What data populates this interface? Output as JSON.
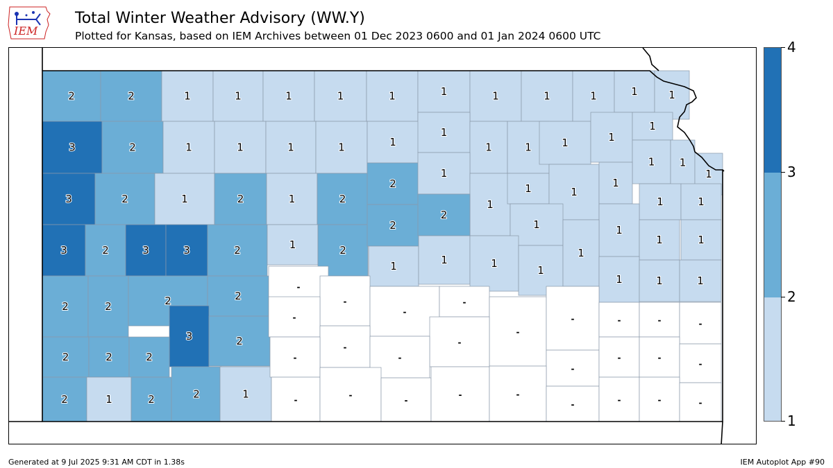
{
  "header": {
    "title": "Total Winter Weather Advisory (WW.Y)",
    "subtitle": "Plotted for Kansas, based on IEM Archives  between 01 Dec 2023 0600 and 01 Jan 2024 0600 UTC",
    "logo_text": "IEM"
  },
  "footer": {
    "generated": "Generated at 9 Jul 2025 9:31 AM CDT in 1.38s",
    "app": "IEM Autoplot App #90"
  },
  "colors": {
    "level1": "#c6dbef",
    "level2": "#6baed6",
    "level3": "#2171b5",
    "none": "#ffffff",
    "county_border": "#8a99aa",
    "logo": "#1a33b3",
    "logo_text": "#cc2222"
  },
  "colorbar": {
    "labels": [
      "4",
      "3",
      "2",
      "1"
    ]
  },
  "map": {
    "none_label": "-",
    "counties": [
      {
        "v": 2,
        "c": [
          60,
          101,
          84,
          73
        ]
      },
      {
        "v": 2,
        "c": [
          144,
          101,
          88,
          73
        ]
      },
      {
        "v": 1,
        "c": [
          232,
          101,
          74,
          73
        ]
      },
      {
        "v": 1,
        "c": [
          306,
          101,
          72,
          73
        ]
      },
      {
        "v": 1,
        "c": [
          378,
          101,
          74,
          73
        ]
      },
      {
        "v": 1,
        "c": [
          452,
          101,
          75,
          73
        ]
      },
      {
        "v": 1,
        "c": [
          527,
          101,
          74,
          73
        ]
      },
      {
        "v": 1,
        "c": [
          601,
          101,
          75,
          60
        ]
      },
      {
        "v": 1,
        "c": [
          676,
          101,
          74,
          73
        ]
      },
      {
        "v": 1,
        "c": [
          750,
          101,
          74,
          73
        ]
      },
      {
        "v": 1,
        "c": [
          824,
          101,
          60,
          73
        ]
      },
      {
        "v": 1,
        "c": [
          884,
          101,
          58,
          60
        ]
      },
      {
        "v": 1,
        "c": [
          942,
          101,
          50,
          70
        ]
      },
      {
        "v": 3,
        "c": [
          60,
          174,
          86,
          75
        ]
      },
      {
        "v": 2,
        "c": [
          146,
          174,
          88,
          75
        ]
      },
      {
        "v": 1,
        "c": [
          234,
          174,
          74,
          75
        ]
      },
      {
        "v": 1,
        "c": [
          308,
          174,
          74,
          75
        ]
      },
      {
        "v": 1,
        "c": [
          382,
          174,
          72,
          75
        ]
      },
      {
        "v": 1,
        "c": [
          454,
          174,
          74,
          75
        ]
      },
      {
        "v": 1,
        "c": [
          528,
          174,
          74,
          60
        ]
      },
      {
        "v": 1,
        "c": [
          601,
          161,
          75,
          58
        ]
      },
      {
        "v": 1,
        "c": [
          676,
          174,
          54,
          75
        ]
      },
      {
        "v": 1,
        "c": [
          730,
          174,
          60,
          75
        ]
      },
      {
        "v": 1,
        "c": [
          776,
          174,
          74,
          62
        ]
      },
      {
        "v": 1,
        "c": [
          850,
          161,
          60,
          72
        ]
      },
      {
        "v": 1,
        "c": [
          910,
          161,
          58,
          40
        ]
      },
      {
        "v": 1,
        "c": [
          910,
          201,
          55,
          63
        ]
      },
      {
        "v": 1,
        "c": [
          965,
          201,
          35,
          65
        ]
      },
      {
        "v": 1,
        "c": [
          1000,
          220,
          40,
          60
        ]
      },
      {
        "v": 3,
        "c": [
          60,
          249,
          76,
          74
        ]
      },
      {
        "v": 2,
        "c": [
          136,
          249,
          86,
          74
        ]
      },
      {
        "v": 1,
        "c": [
          222,
          249,
          86,
          74
        ]
      },
      {
        "v": 2,
        "c": [
          308,
          249,
          75,
          74
        ]
      },
      {
        "v": 1,
        "c": [
          383,
          249,
          73,
          74
        ]
      },
      {
        "v": 2,
        "c": [
          456,
          249,
          73,
          74
        ]
      },
      {
        "v": 2,
        "c": [
          528,
          234,
          74,
          60
        ]
      },
      {
        "v": 1,
        "c": [
          601,
          219,
          75,
          60
        ]
      },
      {
        "v": 1,
        "c": [
          676,
          249,
          58,
          90
        ]
      },
      {
        "v": 1,
        "c": [
          730,
          249,
          60,
          44
        ]
      },
      {
        "v": 1,
        "c": [
          790,
          236,
          72,
          80
        ]
      },
      {
        "v": 1,
        "c": [
          862,
          233,
          48,
          60
        ]
      },
      {
        "v": 1,
        "c": [
          920,
          264,
          60,
          52
        ]
      },
      {
        "v": 1,
        "c": [
          980,
          264,
          58,
          52
        ]
      },
      {
        "v": 3,
        "c": [
          60,
          323,
          62,
          74
        ]
      },
      {
        "v": 2,
        "c": [
          122,
          323,
          58,
          74
        ]
      },
      {
        "v": 3,
        "c": [
          180,
          323,
          58,
          74
        ]
      },
      {
        "v": 3,
        "c": [
          238,
          323,
          60,
          74
        ]
      },
      {
        "v": 2,
        "c": [
          298,
          323,
          86,
          74
        ]
      },
      {
        "v": 1,
        "c": [
          384,
          323,
          73,
          58
        ]
      },
      {
        "v": 2,
        "c": [
          457,
          323,
          72,
          74
        ]
      },
      {
        "v": 2,
        "c": [
          528,
          294,
          74,
          60
        ]
      },
      {
        "v": 2,
        "c": [
          601,
          279,
          75,
          60
        ]
      },
      {
        "v": 1,
        "c": [
          734,
          293,
          76,
          60
        ]
      },
      {
        "v": 1,
        "c": [
          862,
          293,
          58,
          76
        ]
      },
      {
        "v": 1,
        "c": [
          920,
          316,
          58,
          58
        ]
      },
      {
        "v": 1,
        "c": [
          980,
          316,
          58,
          58
        ]
      },
      {
        "v": 2,
        "c": [
          60,
          397,
          66,
          88
        ]
      },
      {
        "v": 2,
        "c": [
          126,
          397,
          58,
          88
        ]
      },
      {
        "v": 2,
        "c": [
          184,
          397,
          114,
          72
        ]
      },
      {
        "v": 2,
        "c": [
          298,
          397,
          88,
          58
        ]
      },
      {
        "v": 1,
        "c": [
          530,
          354,
          72,
          58
        ]
      },
      {
        "v": 1,
        "c": [
          602,
          339,
          74,
          70
        ]
      },
      {
        "v": 1,
        "c": [
          676,
          339,
          70,
          80
        ]
      },
      {
        "v": 1,
        "c": [
          746,
          353,
          64,
          72
        ]
      },
      {
        "v": 1,
        "c": [
          810,
          316,
          52,
          96
        ]
      },
      {
        "v": 1,
        "c": [
          862,
          369,
          58,
          66
        ]
      },
      {
        "v": 1,
        "c": [
          920,
          374,
          58,
          60
        ]
      },
      {
        "v": 1,
        "c": [
          978,
          374,
          60,
          60
        ]
      },
      {
        "v": 3,
        "c": [
          243,
          440,
          57,
          88
        ]
      },
      {
        "v": 2,
        "c": [
          300,
          455,
          88,
          72
        ]
      },
      {
        "v": 2,
        "c": [
          60,
          485,
          67,
          58
        ]
      },
      {
        "v": 2,
        "c": [
          127,
          485,
          58,
          58
        ]
      },
      {
        "v": 2,
        "c": [
          185,
          485,
          58,
          58
        ]
      },
      {
        "v": 2,
        "c": [
          60,
          543,
          64,
          64
        ]
      },
      {
        "v": 1,
        "c": [
          124,
          543,
          64,
          64
        ]
      },
      {
        "v": 2,
        "c": [
          188,
          543,
          58,
          64
        ]
      },
      {
        "v": 2,
        "c": [
          246,
          528,
          72,
          79
        ]
      },
      {
        "v": 1,
        "c": [
          316,
          528,
          74,
          79
        ]
      },
      {
        "v": 0,
        "c": [
          386,
          383,
          86,
          58
        ]
      },
      {
        "v": 0,
        "c": [
          460,
          397,
          72,
          72
        ]
      },
      {
        "v": 0,
        "c": [
          532,
          412,
          100,
          72
        ]
      },
      {
        "v": 0,
        "c": [
          632,
          412,
          72,
          44
        ]
      },
      {
        "v": 0,
        "c": [
          386,
          427,
          74,
          58
        ]
      },
      {
        "v": 0,
        "c": [
          704,
          427,
          82,
          100
        ]
      },
      {
        "v": 0,
        "c": [
          786,
          412,
          76,
          92
        ]
      },
      {
        "v": 0,
        "c": [
          862,
          435,
          58,
          50
        ]
      },
      {
        "v": 0,
        "c": [
          920,
          435,
          58,
          50
        ]
      },
      {
        "v": 0,
        "c": [
          978,
          435,
          60,
          60
        ]
      },
      {
        "v": 0,
        "c": [
          460,
          469,
          72,
          60
        ]
      },
      {
        "v": 0,
        "c": [
          618,
          456,
          86,
          72
        ]
      },
      {
        "v": 0,
        "c": [
          388,
          485,
          72,
          58
        ]
      },
      {
        "v": 0,
        "c": [
          532,
          484,
          86,
          60
        ]
      },
      {
        "v": 0,
        "c": [
          786,
          504,
          76,
          52
        ]
      },
      {
        "v": 0,
        "c": [
          862,
          485,
          58,
          58
        ]
      },
      {
        "v": 0,
        "c": [
          920,
          485,
          58,
          58
        ]
      },
      {
        "v": 0,
        "c": [
          978,
          495,
          60,
          56
        ]
      },
      {
        "v": 0,
        "c": [
          390,
          543,
          70,
          64
        ]
      },
      {
        "v": 0,
        "c": [
          460,
          529,
          88,
          78
        ]
      },
      {
        "v": 0,
        "c": [
          548,
          544,
          72,
          63
        ]
      },
      {
        "v": 0,
        "c": [
          620,
          528,
          84,
          79
        ]
      },
      {
        "v": 0,
        "c": [
          704,
          527,
          82,
          80
        ]
      },
      {
        "v": 0,
        "c": [
          786,
          556,
          76,
          51
        ]
      },
      {
        "v": 0,
        "c": [
          862,
          543,
          58,
          64
        ]
      },
      {
        "v": 0,
        "c": [
          920,
          543,
          58,
          64
        ]
      },
      {
        "v": 0,
        "c": [
          978,
          551,
          60,
          56
        ]
      }
    ]
  }
}
